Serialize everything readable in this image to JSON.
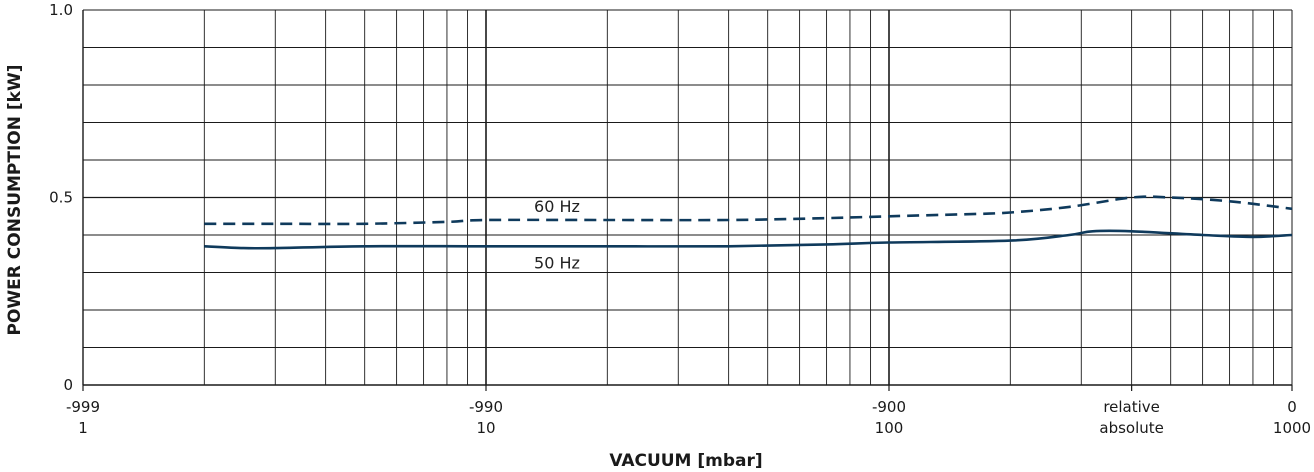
{
  "chart_data": {
    "type": "line",
    "xlabel": "VACUUM  [mbar]",
    "ylabel": "POWER CONSUMPTION  [kW]",
    "x_scale": "log",
    "xlim": [
      1,
      1000
    ],
    "ylim": [
      0,
      1.0
    ],
    "grid": true,
    "y_ticks": [
      {
        "value": 0,
        "label": "0"
      },
      {
        "value": 0.5,
        "label": "0.5"
      },
      {
        "value": 1.0,
        "label": "1.0"
      }
    ],
    "x_ticks": [
      {
        "value": 1,
        "relative": "-999",
        "absolute": "1"
      },
      {
        "value": 10,
        "relative": "-990",
        "absolute": "10"
      },
      {
        "value": 100,
        "relative": "-900",
        "absolute": "100"
      },
      {
        "value": 400,
        "relative": "relative",
        "absolute": "absolute"
      },
      {
        "value": 1000,
        "relative": "0",
        "absolute": "1000"
      }
    ],
    "series": [
      {
        "name": "60 Hz",
        "style": "dashed",
        "color": "#0f3a5c",
        "points": [
          [
            2,
            0.43
          ],
          [
            3,
            0.43
          ],
          [
            5,
            0.43
          ],
          [
            8,
            0.435
          ],
          [
            10,
            0.44
          ],
          [
            20,
            0.44
          ],
          [
            40,
            0.44
          ],
          [
            70,
            0.445
          ],
          [
            100,
            0.45
          ],
          [
            150,
            0.455
          ],
          [
            200,
            0.46
          ],
          [
            280,
            0.475
          ],
          [
            400,
            0.5
          ],
          [
            500,
            0.5
          ],
          [
            700,
            0.49
          ],
          [
            1000,
            0.47
          ]
        ]
      },
      {
        "name": "50 Hz",
        "style": "solid",
        "color": "#0f3a5c",
        "points": [
          [
            2,
            0.37
          ],
          [
            2.5,
            0.365
          ],
          [
            3,
            0.365
          ],
          [
            5,
            0.37
          ],
          [
            10,
            0.37
          ],
          [
            20,
            0.37
          ],
          [
            40,
            0.37
          ],
          [
            70,
            0.375
          ],
          [
            100,
            0.38
          ],
          [
            200,
            0.385
          ],
          [
            280,
            0.4
          ],
          [
            320,
            0.41
          ],
          [
            400,
            0.41
          ],
          [
            600,
            0.4
          ],
          [
            800,
            0.395
          ],
          [
            1000,
            0.4
          ]
        ]
      }
    ]
  }
}
